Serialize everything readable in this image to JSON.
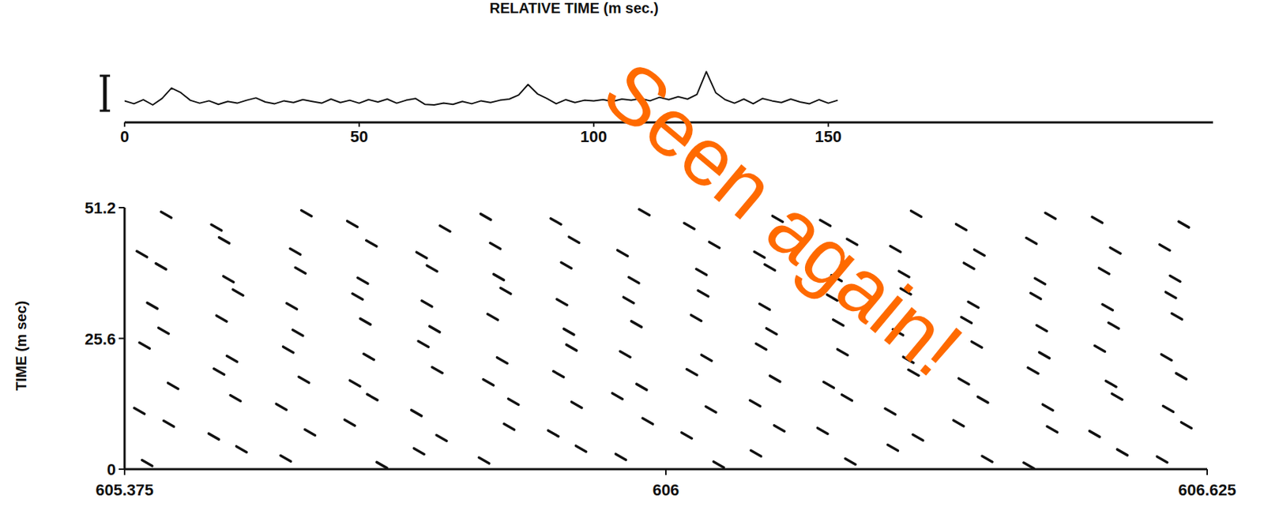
{
  "chart_data": [
    {
      "type": "line",
      "title": "RELATIVE TIME (m sec.)",
      "x": [
        0,
        2,
        4,
        6,
        8,
        10,
        12,
        14,
        16,
        18,
        20,
        22,
        24,
        26,
        28,
        30,
        32,
        34,
        36,
        38,
        40,
        42,
        44,
        46,
        48,
        50,
        52,
        54,
        56,
        58,
        60,
        62,
        64,
        66,
        68,
        70,
        72,
        74,
        76,
        78,
        80,
        82,
        84,
        86,
        88,
        90,
        92,
        94,
        96,
        98,
        100,
        102,
        104,
        106,
        108,
        110,
        112,
        114,
        116,
        118,
        120,
        122,
        124,
        126,
        128,
        130,
        132,
        134,
        136,
        138,
        140,
        142,
        144,
        146,
        148,
        150,
        152
      ],
      "values": [
        0.2,
        -0.3,
        0.4,
        -0.5,
        0.6,
        2.4,
        1.6,
        0.3,
        -0.2,
        0.2,
        -0.4,
        0.1,
        -0.2,
        0.3,
        0.7,
        0.0,
        -0.3,
        0.2,
        -0.1,
        0.4,
        0.1,
        -0.2,
        0.5,
        -0.1,
        0.3,
        -0.2,
        0.4,
        0.0,
        0.5,
        -0.2,
        0.3,
        0.6,
        -0.4,
        -0.5,
        -0.2,
        -0.4,
        0.1,
        -0.3,
        0.2,
        -0.1,
        0.3,
        0.5,
        1.2,
        3.0,
        1.4,
        0.6,
        -0.3,
        0.4,
        -0.1,
        0.3,
        0.2,
        0.4,
        0.1,
        0.5,
        0.3,
        0.6,
        0.2,
        0.8,
        0.4,
        0.9,
        0.5,
        1.3,
        5.2,
        1.6,
        0.4,
        -0.2,
        0.5,
        -0.3,
        0.6,
        0.2,
        -0.1,
        0.5,
        0.0,
        -0.3,
        0.4,
        -0.2,
        0.3
      ],
      "xlim": [
        0,
        232
      ],
      "xticks": [
        0,
        50,
        100,
        150
      ],
      "ylim": [
        -3,
        6
      ],
      "tick_labels": "x",
      "color": "#111111",
      "annotations": [
        "Seen again!"
      ]
    },
    {
      "type": "scatter",
      "ylabel": "TIME (m sec)",
      "marker": "dash",
      "color": "#111111",
      "xlim": [
        605.375,
        606.625
      ],
      "xticks": [
        605.375,
        606,
        606.625
      ],
      "ylim": [
        0,
        51.2
      ],
      "yticks": [
        0,
        25.6,
        51.2
      ],
      "x": [
        605.401,
        605.51,
        605.561,
        605.672,
        605.715,
        605.79,
        605.902,
        605.948,
        606.061,
        606.104,
        606.213,
        606.262,
        606.371,
        606.419,
        606.527,
        606.573,
        605.426,
        605.478,
        605.589,
        605.635,
        605.741,
        605.819,
        605.87,
        605.979,
        606.024,
        606.131,
        606.181,
        606.291,
        606.338,
        606.446,
        606.495,
        606.601,
        605.392,
        605.503,
        605.556,
        605.661,
        605.712,
        605.824,
        605.897,
        605.944,
        606.052,
        606.103,
        606.209,
        606.259,
        606.366,
        606.441,
        606.521,
        606.58,
        605.431,
        605.484,
        605.582,
        605.641,
        605.736,
        605.795,
        605.876,
        605.972,
        606.03,
        606.126,
        606.188,
        606.286,
        606.344,
        606.424,
        606.514,
        606.595,
        605.398,
        605.499,
        605.564,
        605.657,
        605.72,
        605.811,
        605.891,
        605.953,
        606.047,
        606.11,
        606.204,
        606.28,
        606.359,
        606.437,
        606.501,
        606.578,
        605.42,
        605.487,
        605.575,
        605.653,
        605.733,
        605.8,
        605.888,
        605.966,
        606.035,
        606.122,
        606.199,
        606.268,
        606.347,
        606.434,
        606.517,
        606.59,
        605.407,
        605.506,
        605.568,
        605.644,
        605.724,
        605.815,
        605.88,
        605.957,
        606.043,
        606.114,
        606.192,
        606.277,
        606.355,
        606.427,
        606.51,
        606.583,
        605.417,
        605.495,
        605.578,
        605.65,
        605.73,
        605.807,
        605.885,
        605.963,
        606.041,
        606.12,
        606.197,
        606.275,
        606.35,
        606.432,
        606.506,
        606.588,
        605.395,
        605.49,
        605.572,
        605.66,
        605.718,
        605.803,
        605.894,
        605.95,
        606.056,
        606.108,
        606.215,
        606.265,
        606.362,
        606.422,
        606.519,
        606.576,
        605.423,
        605.481,
        605.585,
        605.638,
        605.745,
        605.792,
        605.873,
        605.975,
        606.027,
        606.129,
        606.184,
        606.289,
        606.341,
        606.444,
        606.498,
        606.598
      ],
      "values": [
        1.2,
        3.9,
        2.1,
        0.8,
        3.5,
        1.7,
        4.0,
        2.4,
        0.9,
        3.1,
        1.5,
        4.2,
        2.0,
        0.7,
        3.3,
        1.9,
        8.9,
        6.4,
        7.2,
        9.1,
        6.1,
        8.3,
        7.0,
        9.4,
        6.6,
        8.0,
        7.5,
        6.2,
        9.0,
        7.8,
        6.9,
        8.6,
        11.4,
        13.9,
        12.2,
        14.1,
        11.0,
        13.2,
        12.6,
        14.3,
        11.7,
        12.9,
        14.0,
        11.3,
        13.6,
        12.1,
        14.2,
        11.8,
        16.3,
        19.1,
        17.5,
        16.8,
        19.4,
        17.0,
        18.6,
        16.1,
        19.0,
        17.7,
        16.5,
        18.9,
        17.2,
        19.3,
        16.7,
        18.2,
        24.2,
        21.6,
        23.4,
        22.0,
        24.5,
        21.3,
        23.8,
        22.5,
        21.8,
        24.0,
        22.9,
        21.4,
        24.4,
        22.3,
        23.6,
        21.9,
        27.1,
        29.5,
        26.7,
        28.9,
        27.4,
        29.8,
        26.9,
        28.4,
        29.6,
        27.0,
        28.7,
        26.8,
        29.2,
        27.6,
        28.1,
        29.9,
        32.0,
        34.6,
        31.9,
        33.8,
        32.4,
        34.9,
        32.7,
        33.1,
        34.4,
        31.8,
        33.6,
        34.8,
        32.2,
        33.9,
        31.7,
        34.1,
        39.7,
        37.2,
        38.9,
        36.9,
        39.3,
        37.6,
        39.9,
        37.0,
        38.6,
        39.5,
        37.4,
        38.2,
        39.8,
        36.8,
        38.8,
        37.3,
        42.1,
        44.8,
        42.6,
        44.2,
        41.9,
        43.7,
        44.9,
        42.3,
        43.9,
        42.0,
        44.5,
        43.1,
        42.4,
        44.7,
        42.8,
        43.4,
        49.8,
        47.3,
        50.1,
        48.0,
        47.1,
        49.4,
        48.5,
        50.3,
        47.6,
        49.0,
        48.2,
        50.0,
        47.4,
        49.6,
        48.8,
        47.9
      ]
    }
  ]
}
